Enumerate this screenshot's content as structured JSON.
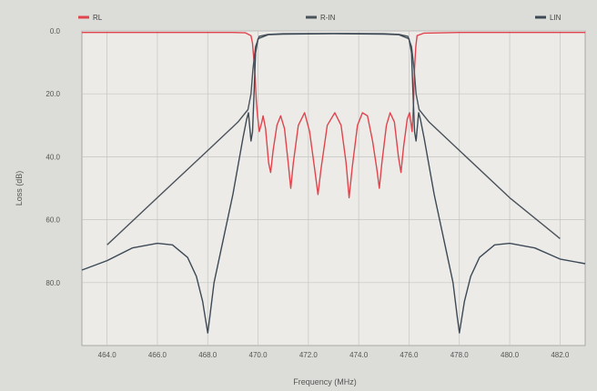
{
  "chart_data": {
    "type": "line",
    "title": "",
    "xlabel": "Frequency (MHz)",
    "ylabel": "Loss (dB)",
    "xlim": [
      463,
      483
    ],
    "ylim": [
      0,
      100
    ],
    "y_inverted": true,
    "grid": true,
    "legend_placement": "top",
    "x_ticks": [
      464,
      466,
      468,
      470,
      472,
      474,
      476,
      478,
      480,
      482
    ],
    "x_tick_labels": [
      "464.0",
      "466.0",
      "468.0",
      "470.0",
      "472.0",
      "474.0",
      "476.0",
      "478.0",
      "480.0",
      "482.0"
    ],
    "y_ticks": [
      0,
      20,
      40,
      60,
      80
    ],
    "y_tick_labels": [
      "0.0",
      "20.0",
      "40.0",
      "60.0",
      "80.0"
    ],
    "series": [
      {
        "name": "RL",
        "color": "#e0444c",
        "points": [
          [
            463,
            0.5
          ],
          [
            466,
            0.5
          ],
          [
            469,
            0.5
          ],
          [
            469.5,
            0.6
          ],
          [
            469.72,
            1.5
          ],
          [
            469.78,
            4
          ],
          [
            469.82,
            8
          ],
          [
            469.88,
            14
          ],
          [
            469.93,
            22
          ],
          [
            469.98,
            27
          ],
          [
            470.05,
            32
          ],
          [
            470.15,
            29
          ],
          [
            470.2,
            27
          ],
          [
            470.3,
            31
          ],
          [
            470.42,
            42
          ],
          [
            470.5,
            45
          ],
          [
            470.6,
            38
          ],
          [
            470.75,
            30
          ],
          [
            470.9,
            27
          ],
          [
            471.05,
            31
          ],
          [
            471.2,
            42
          ],
          [
            471.3,
            50
          ],
          [
            471.4,
            42
          ],
          [
            471.6,
            30
          ],
          [
            471.85,
            26
          ],
          [
            472.05,
            32
          ],
          [
            472.25,
            44
          ],
          [
            472.38,
            52
          ],
          [
            472.5,
            44
          ],
          [
            472.75,
            30
          ],
          [
            473.05,
            26
          ],
          [
            473.3,
            30
          ],
          [
            473.5,
            42
          ],
          [
            473.62,
            53
          ],
          [
            473.75,
            43
          ],
          [
            473.95,
            30
          ],
          [
            474.15,
            26
          ],
          [
            474.35,
            27
          ],
          [
            474.55,
            35
          ],
          [
            474.72,
            44
          ],
          [
            474.82,
            50
          ],
          [
            474.92,
            42
          ],
          [
            475.1,
            30
          ],
          [
            475.25,
            26
          ],
          [
            475.42,
            29
          ],
          [
            475.58,
            40
          ],
          [
            475.68,
            45
          ],
          [
            475.78,
            37
          ],
          [
            475.93,
            28
          ],
          [
            476.02,
            26
          ],
          [
            476.12,
            32
          ],
          [
            476.18,
            23
          ],
          [
            476.22,
            12
          ],
          [
            476.27,
            5
          ],
          [
            476.32,
            1.5
          ],
          [
            476.6,
            0.7
          ],
          [
            478,
            0.5
          ],
          [
            483,
            0.5
          ]
        ]
      },
      {
        "name": "R-IN",
        "color": "#4a525a",
        "points": [
          [
            464,
            68
          ],
          [
            466,
            53
          ],
          [
            468,
            38
          ],
          [
            469.2,
            29
          ],
          [
            469.6,
            25
          ],
          [
            469.72,
            20
          ],
          [
            469.8,
            12
          ],
          [
            469.9,
            5
          ],
          [
            470.05,
            1.7
          ],
          [
            470.4,
            1.1
          ],
          [
            471,
            0.9
          ],
          [
            473,
            0.8
          ],
          [
            475,
            0.9
          ],
          [
            475.6,
            1.1
          ],
          [
            475.95,
            1.7
          ],
          [
            476.1,
            5
          ],
          [
            476.2,
            12
          ],
          [
            476.28,
            20
          ],
          [
            476.4,
            25
          ],
          [
            476.8,
            29
          ],
          [
            478,
            38
          ],
          [
            480,
            53
          ],
          [
            482,
            66
          ]
        ]
      },
      {
        "name": "LIN",
        "color": "#3d4a56",
        "points": [
          [
            463,
            76
          ],
          [
            464,
            73
          ],
          [
            465,
            69
          ],
          [
            466,
            67.5
          ],
          [
            466.6,
            68
          ],
          [
            467.2,
            72
          ],
          [
            467.55,
            78
          ],
          [
            467.8,
            86
          ],
          [
            467.92,
            92
          ],
          [
            468,
            96
          ],
          [
            468.08,
            91
          ],
          [
            468.25,
            80
          ],
          [
            468.6,
            67
          ],
          [
            469.0,
            52
          ],
          [
            469.4,
            34
          ],
          [
            469.55,
            28
          ],
          [
            469.62,
            26
          ],
          [
            469.72,
            35
          ],
          [
            469.78,
            32
          ],
          [
            469.85,
            18
          ],
          [
            469.9,
            7
          ],
          [
            470,
            2.5
          ],
          [
            470.4,
            1.2
          ],
          [
            471,
            1
          ],
          [
            473,
            0.9
          ],
          [
            475,
            1
          ],
          [
            475.6,
            1.2
          ],
          [
            476,
            2.5
          ],
          [
            476.1,
            7
          ],
          [
            476.15,
            18
          ],
          [
            476.22,
            32
          ],
          [
            476.28,
            35
          ],
          [
            476.38,
            26
          ],
          [
            476.45,
            28
          ],
          [
            476.6,
            34
          ],
          [
            477,
            52
          ],
          [
            477.4,
            67
          ],
          [
            477.75,
            80
          ],
          [
            477.92,
            91
          ],
          [
            478,
            96
          ],
          [
            478.08,
            92
          ],
          [
            478.2,
            86
          ],
          [
            478.45,
            78
          ],
          [
            478.8,
            72
          ],
          [
            479.4,
            68
          ],
          [
            480,
            67.5
          ],
          [
            481,
            69
          ],
          [
            482,
            72.5
          ],
          [
            483,
            74
          ]
        ]
      }
    ]
  }
}
